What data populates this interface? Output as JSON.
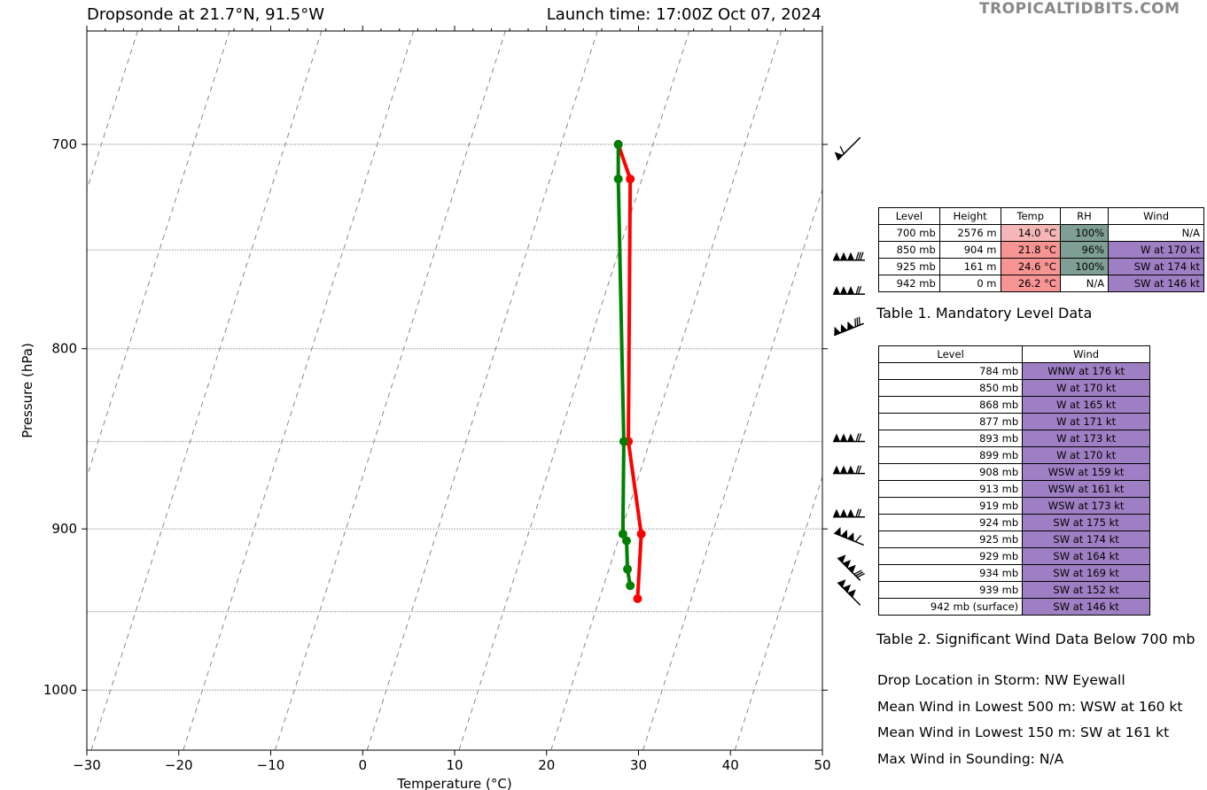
{
  "title_left": "Dropsonde at 21.7°N, 91.5°W",
  "title_right": "Launch time: 17:00Z Oct 07, 2024",
  "brand": "TROPICALTIDBITS.COM",
  "chart_data": {
    "type": "line",
    "xlabel": "Temperature (°C)",
    "ylabel": "Pressure (hPa)",
    "xlim": [
      -30,
      50
    ],
    "ylim": [
      1040,
      650
    ],
    "y_scale": "log",
    "xticks": [
      -30,
      -20,
      -10,
      0,
      10,
      20,
      30,
      40,
      50
    ],
    "xtick_labels": [
      "−30",
      "−20",
      "−10",
      "0",
      "10",
      "20",
      "30",
      "40",
      "50"
    ],
    "yticks": [
      700,
      800,
      900,
      1000
    ],
    "grid_pressures": [
      700,
      750,
      800,
      850,
      900,
      950,
      1000
    ],
    "dry_adiabats": "skew-T dashed gray lines",
    "series": [
      {
        "color": "#ff0000",
        "points": [
          [
            27.8,
            700
          ],
          [
            29.1,
            716
          ],
          [
            28.9,
            850
          ],
          [
            30.3,
            903
          ],
          [
            29.9,
            942
          ]
        ]
      },
      {
        "color": "#008000",
        "points": [
          [
            27.8,
            700
          ],
          [
            27.8,
            716
          ],
          [
            28.4,
            850
          ],
          [
            28.3,
            903
          ],
          [
            28.7,
            907
          ],
          [
            28.8,
            924
          ],
          [
            29.1,
            934
          ]
        ]
      }
    ],
    "wind_barbs": [
      {
        "pressure": 702,
        "speed_kt": 60,
        "dir": "NW"
      },
      {
        "pressure": 755,
        "speed_kt": 180,
        "dir": "W"
      },
      {
        "pressure": 772,
        "speed_kt": 170,
        "dir": "W"
      },
      {
        "pressure": 790,
        "speed_kt": 176,
        "dir": "WNW"
      },
      {
        "pressure": 850,
        "speed_kt": 170,
        "dir": "W"
      },
      {
        "pressure": 868,
        "speed_kt": 165,
        "dir": "W"
      },
      {
        "pressure": 893,
        "speed_kt": 173,
        "dir": "W"
      },
      {
        "pressure": 906,
        "speed_kt": 160,
        "dir": "WSW"
      },
      {
        "pressure": 924,
        "speed_kt": 175,
        "dir": "SW"
      },
      {
        "pressure": 939,
        "speed_kt": 152,
        "dir": "SW"
      }
    ]
  },
  "table1": {
    "headers": [
      "Level",
      "Height",
      "Temp",
      "RH",
      "Wind"
    ],
    "rows": [
      [
        "700 mb",
        "2576 m",
        "14.0 °C",
        "100%",
        "N/A"
      ],
      [
        "850 mb",
        "904 m",
        "21.8 °C",
        "96%",
        "W at 170 kt"
      ],
      [
        "925 mb",
        "161 m",
        "24.6 °C",
        "100%",
        "SW at 174 kt"
      ],
      [
        "942 mb",
        "0 m",
        "26.2 °C",
        "N/A",
        "SW at 146 kt"
      ]
    ],
    "cell_colors": {
      "temp": [
        "#f4b6b6",
        "#f79494",
        "#f79494",
        "#f79494"
      ],
      "rh": [
        "#7f9e94",
        "#7f9e94",
        "#7f9e94",
        "#ffffff"
      ],
      "wind": [
        "#ffffff",
        "#9f7fc3",
        "#9f7fc3",
        "#9f7fc3"
      ]
    },
    "caption": "Table 1. Mandatory Level Data"
  },
  "table2": {
    "headers": [
      "Level",
      "Wind"
    ],
    "rows": [
      [
        "784 mb",
        "WNW at 176 kt"
      ],
      [
        "850 mb",
        "W at 170 kt"
      ],
      [
        "868 mb",
        "W at 165 kt"
      ],
      [
        "877 mb",
        "W at 171 kt"
      ],
      [
        "893 mb",
        "W at 173 kt"
      ],
      [
        "899 mb",
        "W at 170 kt"
      ],
      [
        "908 mb",
        "WSW at 159 kt"
      ],
      [
        "913 mb",
        "WSW at 161 kt"
      ],
      [
        "919 mb",
        "WSW at 173 kt"
      ],
      [
        "924 mb",
        "SW at 175 kt"
      ],
      [
        "925 mb",
        "SW at 174 kt"
      ],
      [
        "929 mb",
        "SW at 164 kt"
      ],
      [
        "934 mb",
        "SW at 169 kt"
      ],
      [
        "939 mb",
        "SW at 152 kt"
      ],
      [
        "942 mb (surface)",
        "SW at 146 kt"
      ]
    ],
    "wind_color": "#9f7fc3",
    "caption": "Table 2. Significant Wind Data Below 700 mb"
  },
  "info": {
    "drop_location": "Drop Location in Storm: NW Eyewall",
    "mean_500": "Mean Wind in Lowest 500 m:  WSW at 160 kt",
    "mean_150": "Mean Wind in Lowest 150 m:  SW at 161 kt",
    "max_wind": "Max Wind in Sounding:  N/A"
  }
}
